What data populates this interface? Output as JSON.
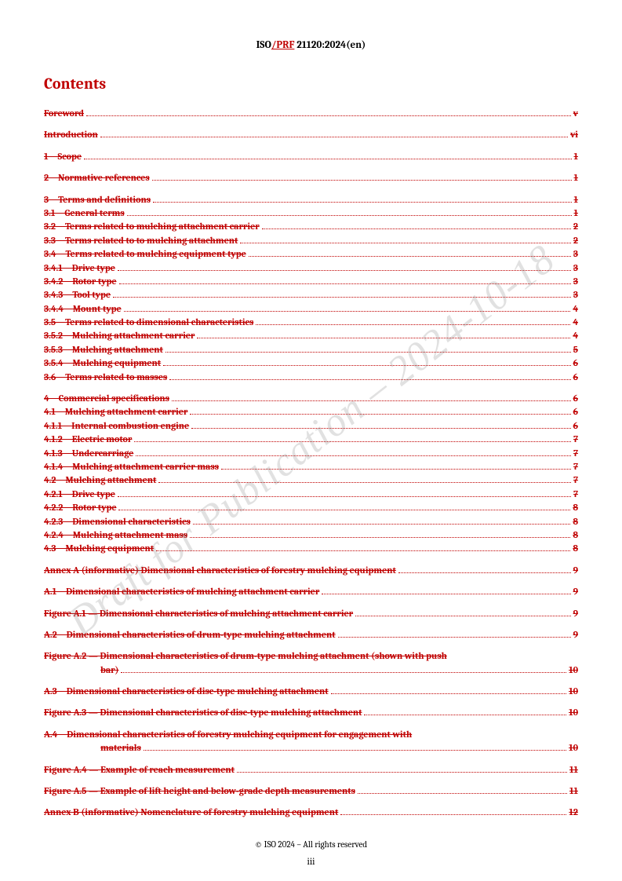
{
  "header": {
    "prefix": "ISO",
    "red": "/PRF",
    "suffix": " 21120:2024(en)"
  },
  "title": "Contents",
  "watermark": "Draft for Publication – 2024-10-18",
  "footer": "© ISO 2024 – All rights reserved",
  "pagenum": "iii",
  "colors": {
    "accent": "#c00000"
  },
  "blocks": [
    [
      {
        "label": "Foreword",
        "page": "v",
        "indent": 1
      }
    ],
    [
      {
        "label": "Introduction",
        "page": "vi",
        "indent": 1
      }
    ],
    [
      {
        "label": "1 Scope",
        "page": "1",
        "indent": 1
      }
    ],
    [
      {
        "label": "2 Normative references",
        "page": "1",
        "indent": 1
      }
    ],
    [
      {
        "label": "3 Terms and definitions",
        "page": "1",
        "indent": 1
      },
      {
        "label": "3.1 General terms",
        "page": "1",
        "indent": 1
      },
      {
        "label": "3.2 Terms related to mulching attachment carrier",
        "page": "2",
        "indent": 1
      },
      {
        "label": "3.3 Terms related to to mulching attachment",
        "page": "2",
        "indent": 1
      },
      {
        "label": "3.4 Terms related to mulching equipment type",
        "page": "3",
        "indent": 1
      },
      {
        "label": "3.4.1 Drive type",
        "page": "3",
        "indent": 1
      },
      {
        "label": "3.4.2 Rotor type",
        "page": "3",
        "indent": 1
      },
      {
        "label": "3.4.3 Tool type",
        "page": "3",
        "indent": 1
      },
      {
        "label": "3.4.4 Mount type",
        "page": "4",
        "indent": 1
      },
      {
        "label": "3.5 Terms related to dimensional characteristics",
        "page": "4",
        "indent": 1
      },
      {
        "label": "3.5.2 Mulching attachment carrier",
        "page": "4",
        "indent": 1
      },
      {
        "label": "3.5.3 Mulching attachment",
        "page": "5",
        "indent": 1
      },
      {
        "label": "3.5.4 Mulching equipment",
        "page": "6",
        "indent": 1
      },
      {
        "label": "3.6 Terms related to masses",
        "page": "6",
        "indent": 1
      }
    ],
    [
      {
        "label": "4 Commercial specifications",
        "page": "6",
        "indent": 1
      },
      {
        "label": "4.1 Mulching attachment carrier",
        "page": "6",
        "indent": 1
      },
      {
        "label": "4.1.1 Internal combustion engine",
        "page": "6",
        "indent": 1
      },
      {
        "label": "4.1.2 Electric motor",
        "page": "7",
        "indent": 1
      },
      {
        "label": "4.1.3 Undercarriage",
        "page": "7",
        "indent": 1
      },
      {
        "label": "4.1.4 Mulching attachment carrier mass",
        "page": "7",
        "indent": 1
      },
      {
        "label": "4.2 Mulching attachment",
        "page": "7",
        "indent": 1
      },
      {
        "label": "4.2.1 Drive type",
        "page": "7",
        "indent": 1
      },
      {
        "label": "4.2.2 Rotor type",
        "page": "8",
        "indent": 1
      },
      {
        "label": "4.2.3 Dimensional characteristics",
        "page": "8",
        "indent": 1
      },
      {
        "label": "4.2.4 Mulching attachment mass",
        "page": "8",
        "indent": 1
      },
      {
        "label": "4.3 Mulching equipment",
        "page": "8",
        "indent": 1
      }
    ],
    [
      {
        "label": "Annex A (informative)  Dimensional characteristics of forestry mulching equipment",
        "page": "9",
        "indent": 1
      }
    ],
    [
      {
        "label": "A.1 Dimensional characteristics of mulching attachment carrier",
        "page": "9",
        "indent": 1
      }
    ],
    [
      {
        "label": "Figure A.1 — Dimensional characteristics of mulching attachment carrier",
        "page": "9",
        "indent": 1
      }
    ],
    [
      {
        "label": "A.2 Dimensional characteristics of drum-type mulching attachment",
        "page": "9",
        "indent": 1
      }
    ],
    [
      {
        "label": "Figure A.2 — Dimensional characteristics of drum-type mulching attachment (shown with push",
        "indent": 1,
        "nodots": true
      },
      {
        "label": "bar)",
        "page": "10",
        "indent": 0,
        "cont": true
      }
    ],
    [
      {
        "label": "A.3 Dimensional characteristics of disc-type mulching attachment",
        "page": "10",
        "indent": 1
      }
    ],
    [
      {
        "label": "Figure A.3 — Dimensional characteristics of disc-type mulching attachment",
        "page": "10",
        "indent": 1
      }
    ],
    [
      {
        "label": "A.4 Dimensional characteristics of forestry mulching equipment for engagement with",
        "indent": 1,
        "nodots": true
      },
      {
        "label": "materials",
        "page": "10",
        "indent": 0,
        "cont": true
      }
    ],
    [
      {
        "label": "Figure A.4 — Example of reach measurement",
        "page": "11",
        "indent": 1
      }
    ],
    [
      {
        "label": "Figure A.5 — Example of lift height and below-grade depth measurements",
        "page": "11",
        "indent": 1
      }
    ],
    [
      {
        "label": "Annex B (informative)  Nomenclature of forestry mulching equipment",
        "page": "12",
        "indent": 1
      }
    ]
  ]
}
